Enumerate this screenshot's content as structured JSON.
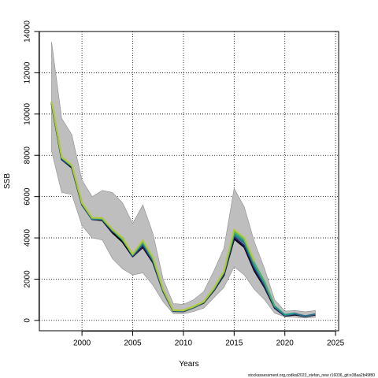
{
  "chart_data": {
    "type": "line",
    "title": "",
    "xlabel": "Years",
    "ylabel": "SSB",
    "xlim": [
      1995.8,
      2025.3
    ],
    "ylim": [
      -500,
      14000
    ],
    "x_ticks": [
      2000,
      2005,
      2010,
      2015,
      2020,
      2025
    ],
    "y_ticks": [
      0,
      2000,
      4000,
      6000,
      8000,
      10000,
      12000,
      14000
    ],
    "grid": true,
    "legend": "none",
    "footer_text": "stockassessment.org,codkat2023_stefan_new r16036_git:e38aa2b49f80",
    "band": {
      "x": [
        1997,
        1998,
        1999,
        2000,
        2001,
        2002,
        2003,
        2004,
        2005,
        2006,
        2007,
        2008,
        2009,
        2010,
        2011,
        2012,
        2013,
        2014,
        2015,
        2016,
        2017,
        2018,
        2019,
        2020,
        2021,
        2022,
        2023
      ],
      "lower": [
        8200,
        6200,
        6100,
        4600,
        4000,
        3900,
        3000,
        2500,
        2200,
        2300,
        1700,
        900,
        330,
        320,
        430,
        600,
        1100,
        1600,
        2600,
        2200,
        1500,
        1000,
        350,
        180,
        150,
        120,
        150
      ],
      "upper": [
        13500,
        9800,
        9000,
        6800,
        6000,
        6300,
        6200,
        5700,
        4700,
        5600,
        4200,
        2000,
        820,
        780,
        1000,
        1400,
        2400,
        3500,
        6400,
        5500,
        3800,
        2500,
        1000,
        450,
        480,
        420,
        480
      ]
    },
    "series": [
      {
        "color": "#000000",
        "values": [
          10500,
          7800,
          7400,
          5600,
          4900,
          4850,
          4250,
          3800,
          3100,
          3550,
          2800,
          1400,
          450,
          440,
          620,
          850,
          1450,
          2200,
          3950,
          3550,
          2400,
          1600,
          600,
          220,
          280,
          190,
          270
        ]
      },
      {
        "color": "#2a1d6e",
        "values": [
          10550,
          7800,
          7450,
          5620,
          4900,
          4880,
          4300,
          4000,
          3100,
          3600,
          2850,
          1420,
          460,
          450,
          630,
          870,
          1480,
          2250,
          4050,
          3620,
          2500,
          1650,
          630,
          230,
          310,
          200,
          290
        ]
      },
      {
        "color": "#2b6f8a",
        "values": [
          10560,
          7850,
          7460,
          5640,
          4920,
          4900,
          4350,
          3950,
          3150,
          3700,
          2900,
          1450,
          470,
          460,
          640,
          880,
          1500,
          2300,
          4150,
          3750,
          2600,
          1750,
          660,
          260,
          330,
          210,
          310
        ]
      },
      {
        "color": "#1f9b8a",
        "values": [
          10580,
          7880,
          7480,
          5660,
          4940,
          4920,
          4380,
          3900,
          3170,
          3780,
          2950,
          1470,
          480,
          470,
          650,
          890,
          1520,
          2340,
          4200,
          3850,
          2700,
          1830,
          690,
          280,
          350,
          0,
          0
        ]
      },
      {
        "color": "#4db36a",
        "values": [
          10600,
          7900,
          7500,
          5680,
          4960,
          4940,
          4400,
          3950,
          3190,
          3820,
          3000,
          1490,
          490,
          480,
          660,
          900,
          1540,
          2360,
          4300,
          3920,
          2780,
          1880,
          700,
          0,
          0,
          0,
          0
        ]
      },
      {
        "color": "#b3c832",
        "values": [
          10620,
          7920,
          7520,
          5700,
          4980,
          4960,
          4420,
          4000,
          3210,
          3880,
          3050,
          1510,
          500,
          490,
          670,
          910,
          1560,
          2380,
          4400,
          4000,
          2850,
          0,
          0,
          0,
          0,
          0,
          0
        ]
      }
    ]
  }
}
